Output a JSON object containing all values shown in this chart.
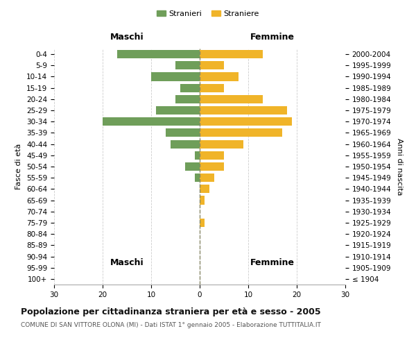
{
  "age_groups": [
    "100+",
    "95-99",
    "90-94",
    "85-89",
    "80-84",
    "75-79",
    "70-74",
    "65-69",
    "60-64",
    "55-59",
    "50-54",
    "45-49",
    "40-44",
    "35-39",
    "30-34",
    "25-29",
    "20-24",
    "15-19",
    "10-14",
    "5-9",
    "0-4"
  ],
  "birth_years": [
    "≤ 1904",
    "1905-1909",
    "1910-1914",
    "1915-1919",
    "1920-1924",
    "1925-1929",
    "1930-1934",
    "1935-1939",
    "1940-1944",
    "1945-1949",
    "1950-1954",
    "1955-1959",
    "1960-1964",
    "1965-1969",
    "1970-1974",
    "1975-1979",
    "1980-1984",
    "1985-1989",
    "1990-1994",
    "1995-1999",
    "2000-2004"
  ],
  "maschi": [
    0,
    0,
    0,
    0,
    0,
    0,
    0,
    0,
    0,
    1,
    3,
    1,
    6,
    7,
    20,
    9,
    5,
    4,
    10,
    5,
    17
  ],
  "femmine": [
    0,
    0,
    0,
    0,
    0,
    1,
    0,
    1,
    2,
    3,
    5,
    5,
    9,
    17,
    19,
    18,
    13,
    5,
    8,
    5,
    13
  ],
  "maschi_color": "#6f9e5a",
  "femmine_color": "#f0b429",
  "title": "Popolazione per cittadinanza straniera per età e sesso - 2005",
  "subtitle": "COMUNE DI SAN VITTORE OLONA (MI) - Dati ISTAT 1° gennaio 2005 - Elaborazione TUTTITALIA.IT",
  "xlabel_left": "Maschi",
  "xlabel_right": "Femmine",
  "ylabel_left": "Fasce di età",
  "ylabel_right": "Anni di nascita",
  "legend_maschi": "Stranieri",
  "legend_femmine": "Straniere",
  "xlim": 30,
  "xticks": [
    -30,
    -20,
    -10,
    0,
    10,
    20,
    30
  ],
  "xticklabels": [
    "30",
    "20",
    "10",
    "0",
    "10",
    "20",
    "30"
  ],
  "background_color": "#ffffff",
  "grid_color": "#cccccc",
  "bar_height": 0.75,
  "title_fontsize": 9,
  "subtitle_fontsize": 6.5,
  "tick_fontsize": 7.5,
  "label_fontsize": 8,
  "legend_fontsize": 8,
  "header_fontsize": 9
}
